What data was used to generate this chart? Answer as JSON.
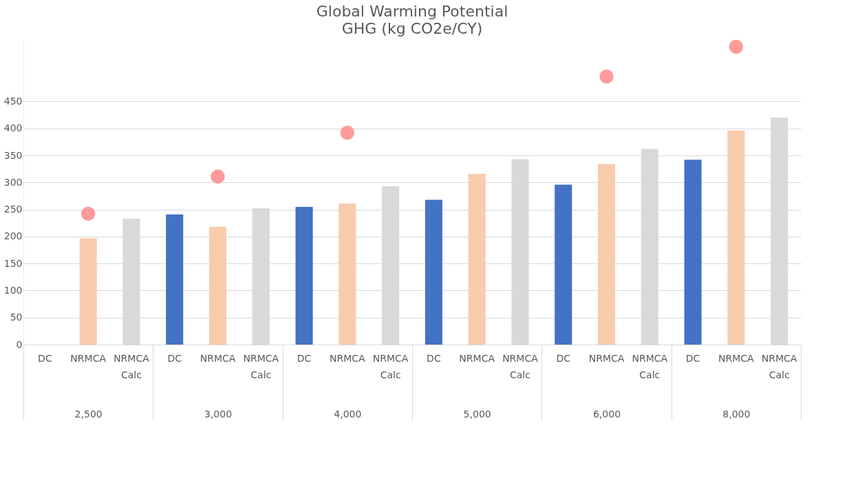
{
  "chart_data": {
    "type": "bar",
    "title": "Global Warming Potential",
    "subtitle": "GHG (kg CO2e/CY)",
    "categories": [
      "2,500",
      "3,000",
      "4,000",
      "5,000",
      "6,000",
      "8,000"
    ],
    "series": [
      {
        "name": "DC",
        "color": "#4472c4",
        "values": [
          null,
          241,
          255,
          268,
          296,
          342
        ]
      },
      {
        "name": "NRMCA",
        "color": "#f8cbad",
        "values": [
          197,
          218,
          261,
          316,
          334,
          396
        ]
      },
      {
        "name": "NRMCA Calc",
        "color": "#d9d9d9",
        "values": [
          233,
          252,
          293,
          343,
          362,
          420
        ]
      },
      {
        "type": "scatter",
        "color": "#ff8a8a",
        "x": [
          "2,500",
          "3,000",
          "4,000",
          "6,000",
          "8,000"
        ],
        "values": [
          242,
          311,
          392,
          496,
          551
        ]
      }
    ],
    "ylim": [
      0,
      560
    ],
    "yticks": [
      0,
      50,
      100,
      150,
      200,
      250,
      300,
      350,
      400,
      450
    ],
    "grid": "y",
    "marker": "circle"
  }
}
